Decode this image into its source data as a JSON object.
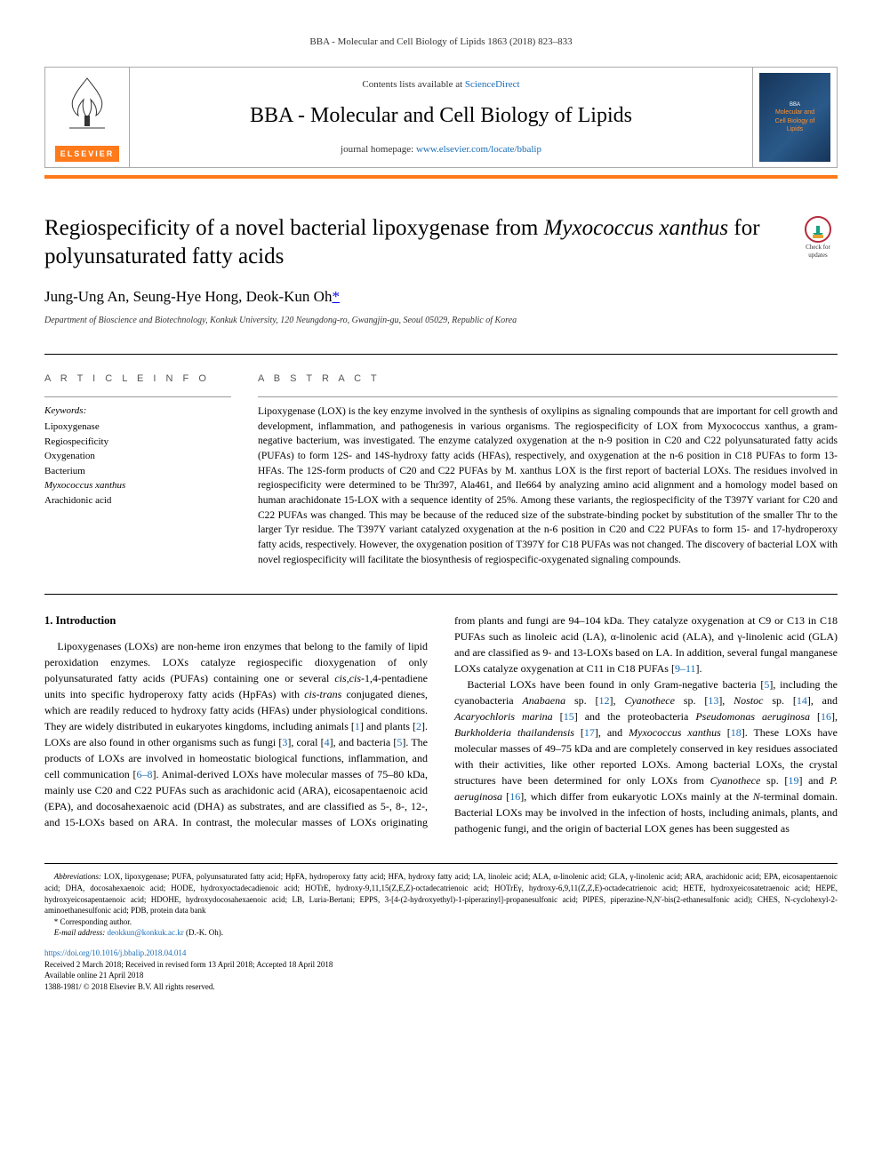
{
  "runningHeader": "BBA - Molecular and Cell Biology of Lipids 1863 (2018) 823–833",
  "masthead": {
    "contentsPrefix": "Contents lists available at ",
    "contentsLink": "ScienceDirect",
    "journalTitle": "BBA - Molecular and Cell Biology of Lipids",
    "homepagePrefix": "journal homepage: ",
    "homepageLink": "www.elsevier.com/locate/bbalip",
    "elsevierLabel": "ELSEVIER",
    "coverLine1": "Molecular and",
    "coverLine2": "Cell Biology of",
    "coverLine3": "Lipids"
  },
  "article": {
    "titleHtml": "Regiospecificity of a novel bacterial lipoxygenase from <em>Myxococcus xanthus</em> for polyunsaturated fatty acids",
    "checkLabel": "Check for updates",
    "authors": "Jung-Ung An, Seung-Hye Hong, Deok-Kun Oh",
    "corresponding": "*",
    "affiliation": "Department of Bioscience and Biotechnology, Konkuk University, 120 Neungdong-ro, Gwangjin-gu, Seoul 05029, Republic of Korea"
  },
  "info": {
    "heading": "A R T I C L E   I N F O",
    "keywordsLabel": "Keywords:",
    "keywords": [
      "Lipoxygenase",
      "Regiospecificity",
      "Oxygenation",
      "Bacterium",
      "Myxococcus xanthus",
      "Arachidonic acid"
    ]
  },
  "abstract": {
    "heading": "A B S T R A C T",
    "text": "Lipoxygenase (LOX) is the key enzyme involved in the synthesis of oxylipins as signaling compounds that are important for cell growth and development, inflammation, and pathogenesis in various organisms. The regiospecificity of LOX from Myxococcus xanthus, a gram-negative bacterium, was investigated. The enzyme catalyzed oxygenation at the n-9 position in C20 and C22 polyunsaturated fatty acids (PUFAs) to form 12S- and 14S-hydroxy fatty acids (HFAs), respectively, and oxygenation at the n-6 position in C18 PUFAs to form 13-HFAs. The 12S-form products of C20 and C22 PUFAs by M. xanthus LOX is the first report of bacterial LOXs. The residues involved in regiospecificity were determined to be Thr397, Ala461, and Ile664 by analyzing amino acid alignment and a homology model based on human arachidonate 15-LOX with a sequence identity of 25%. Among these variants, the regiospecificity of the T397Y variant for C20 and C22 PUFAs was changed. This may be because of the reduced size of the substrate-binding pocket by substitution of the smaller Thr to the larger Tyr residue. The T397Y variant catalyzed oxygenation at the n-6 position in C20 and C22 PUFAs to form 15- and 17-hydroperoxy fatty acids, respectively. However, the oxygenation position of T397Y for C18 PUFAs was not changed. The discovery of bacterial LOX with novel regiospecificity will facilitate the biosynthesis of regiospecific-oxygenated signaling compounds."
  },
  "body": {
    "sectionNum": "1.",
    "sectionTitle": "Introduction",
    "para1": "Lipoxygenases (LOXs) are non-heme iron enzymes that belong to the family of lipid peroxidation enzymes. LOXs catalyze regiospecific dioxygenation of only polyunsaturated fatty acids (PUFAs) containing one or several cis,cis-1,4-pentadiene units into specific hydroperoxy fatty acids (HpFAs) with cis-trans conjugated dienes, which are readily reduced to hydroxy fatty acids (HFAs) under physiological conditions. They are widely distributed in eukaryotes kingdoms, including animals [1] and plants [2]. LOXs are also found in other organisms such as fungi [3], coral [4], and bacteria [5]. The products of LOXs are involved in homeostatic biological functions, inflammation, and cell communication [6–8]. Animal-derived LOXs have molecular masses of 75–80 kDa, mainly use C20 and C22 PUFAs such as arachidonic acid (ARA), eicosapentaenoic acid (EPA), and docosahexaenoic acid (DHA) as substrates, and are classified as 5-, 8-, 12-, and 15-LOXs based on ARA. In contrast, the molecular masses of LOXs originating from plants and",
    "para2": "fungi are 94–104 kDa. They catalyze oxygenation at C9 or C13 in C18 PUFAs such as linoleic acid (LA), α-linolenic acid (ALA), and γ-linolenic acid (GLA) and are classified as 9- and 13-LOXs based on LA. In addition, several fungal manganese LOXs catalyze oxygenation at C11 in C18 PUFAs [9–11].",
    "para3": "Bacterial LOXs have been found in only Gram-negative bacteria [5], including the cyanobacteria Anabaena sp. [12], Cyanothece sp. [13], Nostoc sp. [14], and Acaryochloris marina [15] and the proteobacteria Pseudomonas aeruginosa [16], Burkholderia thailandensis [17], and Myxococcus xanthus [18]. These LOXs have molecular masses of 49–75 kDa and are completely conserved in key residues associated with their activities, like other reported LOXs. Among bacterial LOXs, the crystal structures have been determined for only LOXs from Cyanothece sp. [19] and P. aeruginosa [16], which differ from eukaryotic LOXs mainly at the N-terminal domain. Bacterial LOXs may be involved in the infection of hosts, including animals, plants, and pathogenic fungi, and the origin of bacterial LOX genes has been suggested as"
  },
  "footnotes": {
    "abbrevLabel": "Abbreviations:",
    "abbrevText": " LOX, lipoxygenase; PUFA, polyunsaturated fatty acid; HpFA, hydroperoxy fatty acid; HFA, hydroxy fatty acid; LA, linoleic acid; ALA, α-linolenic acid; GLA, γ-linolenic acid; ARA, arachidonic acid; EPA, eicosapentaenoic acid; DHA, docosahexaenoic acid; HODE, hydroxyoctadecadienoic acid; HOTrE, hydroxy-9,11,15(Z,E,Z)-octadecatrienoic acid; HOTrEγ, hydroxy-6,9,11(Z,Z,E)-octadecatrienoic acid; HETE, hydroxyeicosatetraenoic acid; HEPE, hydroxyeicosapentaenoic acid; HDOHE, hydroxydocosahexaenoic acid; LB, Luria-Bertani; EPPS, 3-[4-(2-hydroxyethyl)-1-piperazinyl]-propanesulfonic acid; PIPES, piperazine-N,N′-bis(2-ethanesulfonic acid); CHES, N-cyclohexyl-2-aminoethanesulfonic acid; PDB, protein data bank",
    "corrLabel": "* Corresponding author.",
    "emailLabel": "E-mail address:",
    "email": "deokkun@konkuk.ac.kr",
    "emailSuffix": " (D.-K. Oh)."
  },
  "pubInfo": {
    "doi": "https://doi.org/10.1016/j.bbalip.2018.04.014",
    "received": "Received 2 March 2018; Received in revised form 13 April 2018; Accepted 18 April 2018",
    "available": "Available online 21 April 2018",
    "copyright": "1388-1981/ © 2018 Elsevier B.V. All rights reserved."
  },
  "colors": {
    "orange": "#ff7a1a",
    "link": "#1a6db5",
    "text": "#000000"
  },
  "refs": [
    "1",
    "2",
    "3",
    "4",
    "5",
    "6–8",
    "9–11",
    "12",
    "13",
    "14",
    "15",
    "16",
    "17",
    "18",
    "19"
  ]
}
